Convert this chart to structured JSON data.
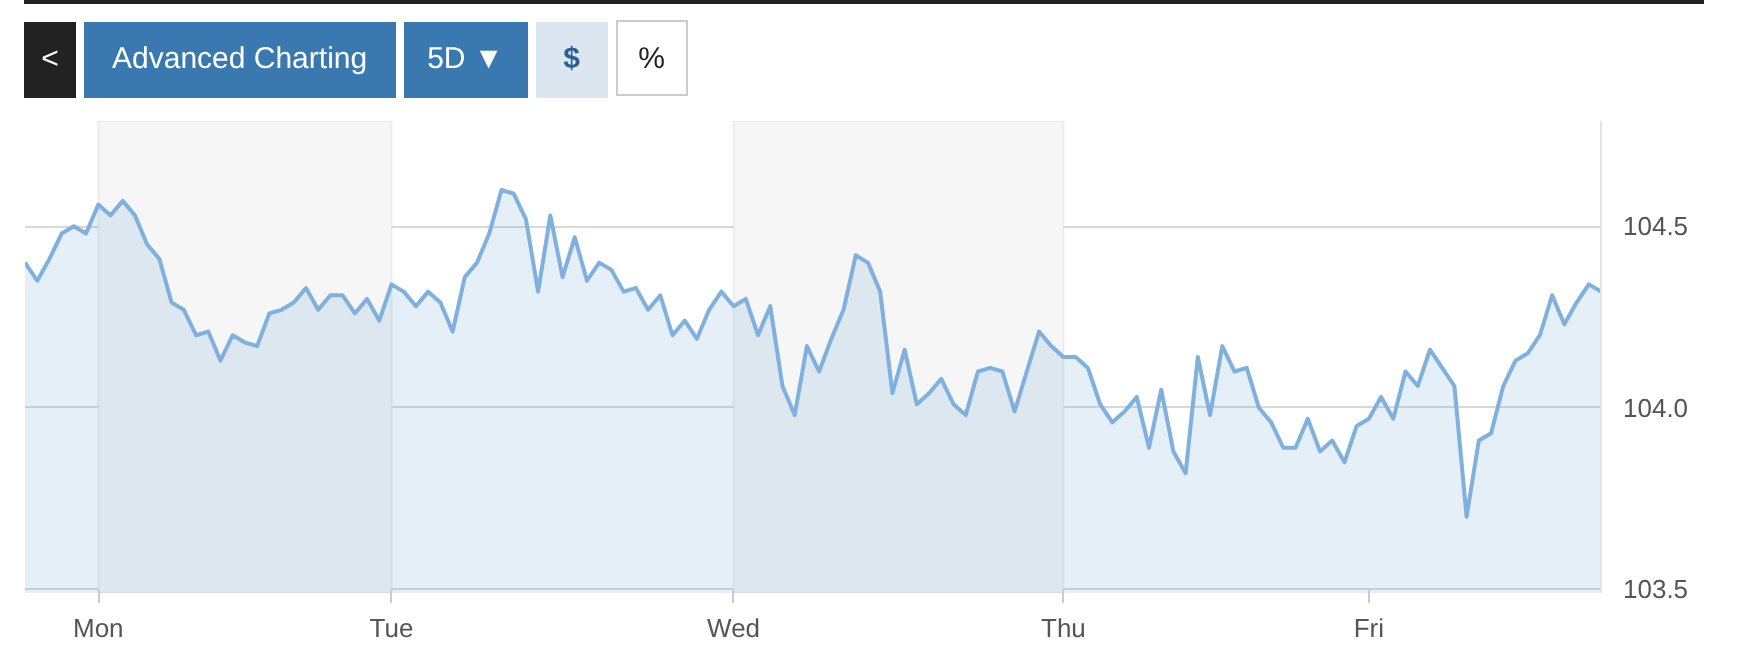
{
  "chart_data": {
    "type": "area",
    "annotations": [
      "<",
      "Advanced Charting",
      "5D ▼",
      "$",
      "%"
    ],
    "categories": [
      null,
      null,
      null,
      null,
      null,
      null,
      "Mon",
      null,
      null,
      null,
      null,
      null,
      null,
      null,
      null,
      null,
      null,
      null,
      null,
      null,
      null,
      null,
      null,
      null,
      null,
      null,
      null,
      null,
      null,
      null,
      "Tue",
      null,
      null,
      null,
      null,
      null,
      null,
      null,
      null,
      null,
      null,
      null,
      null,
      null,
      null,
      null,
      null,
      null,
      null,
      null,
      null,
      null,
      null,
      null,
      null,
      null,
      null,
      null,
      "Wed",
      null,
      null,
      null,
      null,
      null,
      null,
      null,
      null,
      null,
      null,
      null,
      null,
      null,
      null,
      null,
      null,
      null,
      null,
      null,
      null,
      null,
      null,
      null,
      null,
      null,
      null,
      "Thu",
      null,
      null,
      null,
      null,
      null,
      null,
      null,
      null,
      null,
      null,
      null,
      null,
      null,
      null,
      null,
      null,
      null,
      null,
      null,
      null,
      null,
      null,
      null,
      null,
      "Fri",
      null,
      null,
      null,
      null,
      null,
      null,
      null,
      null,
      null,
      null,
      null,
      null,
      null,
      null,
      null,
      null,
      null,
      null,
      null
    ],
    "series": [
      {
        "color": "#7fb0de",
        "values": [
          104.4,
          104.35,
          104.41,
          104.48,
          104.5,
          104.48,
          104.56,
          104.53,
          104.57,
          104.53,
          104.45,
          104.41,
          104.29,
          104.27,
          104.2,
          104.21,
          104.13,
          104.2,
          104.18,
          104.17,
          104.26,
          104.27,
          104.29,
          104.33,
          104.27,
          104.31,
          104.31,
          104.26,
          104.3,
          104.24,
          104.34,
          104.32,
          104.28,
          104.32,
          104.29,
          104.21,
          104.36,
          104.4,
          104.48,
          104.6,
          104.59,
          104.52,
          104.32,
          104.53,
          104.36,
          104.47,
          104.35,
          104.4,
          104.38,
          104.32,
          104.33,
          104.27,
          104.31,
          104.2,
          104.24,
          104.19,
          104.27,
          104.32,
          104.28,
          104.3,
          104.2,
          104.28,
          104.06,
          103.98,
          104.17,
          104.1,
          104.19,
          104.27,
          104.42,
          104.4,
          104.32,
          104.04,
          104.16,
          104.01,
          104.04,
          104.08,
          104.01,
          103.98,
          104.1,
          104.11,
          104.1,
          103.99,
          104.1,
          104.21,
          104.17,
          104.14,
          104.14,
          104.11,
          104.01,
          103.96,
          103.99,
          104.03,
          103.89,
          104.05,
          103.88,
          103.82,
          104.14,
          103.98,
          104.17,
          104.1,
          104.11,
          104.0,
          103.96,
          103.89,
          103.89,
          103.97,
          103.88,
          103.91,
          103.85,
          103.95,
          103.97,
          104.03,
          103.97,
          104.1,
          104.06,
          104.16,
          104.11,
          104.06,
          103.7,
          103.91,
          103.93,
          104.06,
          104.13,
          104.15,
          104.2,
          104.31,
          104.23,
          104.29,
          104.34,
          104.32
        ]
      }
    ],
    "ylim": [
      103.49,
      104.79
    ],
    "yticks": [
      {
        "value": 103.5,
        "label": "103.5"
      },
      {
        "value": 104.0,
        "label": "104.0"
      },
      {
        "value": 104.5,
        "label": "104.5"
      }
    ],
    "grid": "y",
    "bands": [
      {
        "axis": "x",
        "from": "Mon",
        "to": "Tue",
        "color": "#f6f6f6"
      },
      {
        "axis": "x",
        "from": "Wed",
        "to": "Thu",
        "color": "#f6f6f6"
      }
    ]
  }
}
